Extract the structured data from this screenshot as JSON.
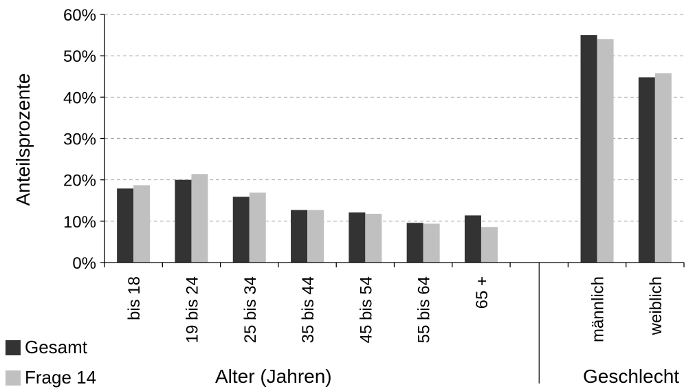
{
  "chart_data": {
    "type": "bar",
    "title": "",
    "ylabel": "Anteilsprozente",
    "ylim": [
      0,
      60
    ],
    "ytick_step": 10,
    "ytick_suffix": "%",
    "grid": true,
    "legend_position": "bottom-left",
    "categories": [
      "bis 18",
      "19 bis 24",
      "25 bis 34",
      "35 bis 44",
      "45 bis 54",
      "55 bis 64",
      "65 +",
      "",
      "männlich",
      "weiblich"
    ],
    "groups": [
      {
        "label": "Alter (Jahren)",
        "categories": [
          "bis 18",
          "19 bis 24",
          "25 bis 34",
          "35 bis 44",
          "45 bis 54",
          "55 bis 64",
          "65 +"
        ]
      },
      {
        "label": "Geschlecht",
        "categories": [
          "männlich",
          "weiblich"
        ]
      }
    ],
    "series": [
      {
        "name": "Gesamt",
        "color": "#333333",
        "values": [
          17.9,
          20.0,
          15.9,
          12.7,
          12.1,
          9.6,
          11.4,
          null,
          55.0,
          44.8
        ]
      },
      {
        "name": "Frage 14",
        "color": "#c0c0c0",
        "values": [
          18.7,
          21.4,
          16.9,
          12.7,
          11.8,
          9.4,
          8.6,
          null,
          54.0,
          45.8
        ]
      }
    ]
  }
}
